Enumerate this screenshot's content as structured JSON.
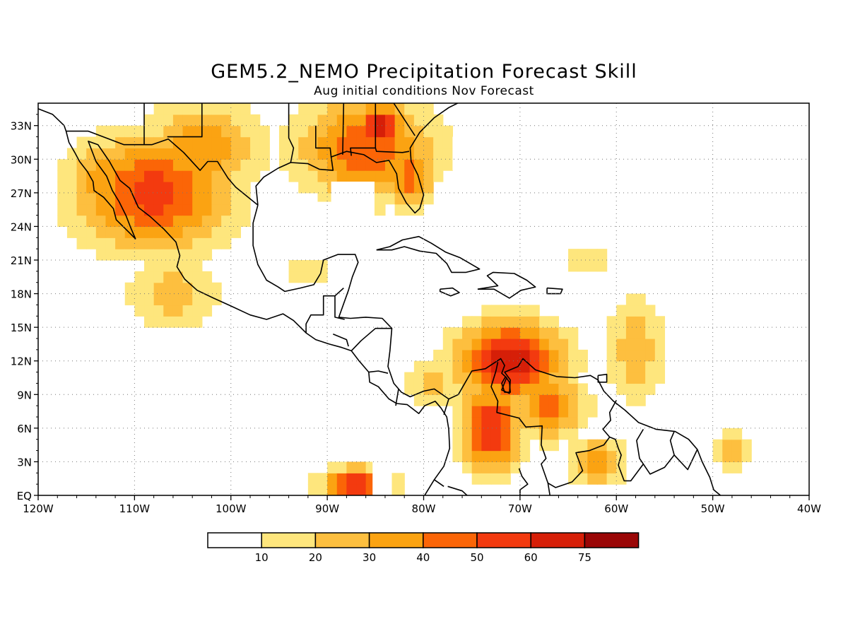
{
  "title": "GEM5.2_NEMO Precipitation Forecast Skill",
  "subtitle": "Aug initial conditions  Nov Forecast",
  "map": {
    "lon_range": [
      -120,
      -40
    ],
    "lat_range": [
      0,
      35
    ],
    "grid": true,
    "lon_labels": [
      "120W",
      "110W",
      "100W",
      "90W",
      "80W",
      "70W",
      "60W",
      "50W",
      "40W"
    ],
    "lat_labels": [
      "EQ",
      "3N",
      "6N",
      "9N",
      "12N",
      "15N",
      "18N",
      "21N",
      "24N",
      "27N",
      "30N",
      "33N"
    ]
  },
  "colorbar": {
    "labels": [
      "10",
      "20",
      "30",
      "40",
      "50",
      "60",
      "75"
    ],
    "colors": [
      "#ffffff",
      "#fee67d",
      "#fdbf3f",
      "#fba312",
      "#fb6507",
      "#f33a0f",
      "#d61f08",
      "#9a0606"
    ]
  },
  "fields": [
    {
      "lon": -108,
      "lat": 27,
      "sx": 8,
      "sy": 5,
      "peak": 55
    },
    {
      "lon": -113,
      "lat": 28,
      "sx": 3.5,
      "sy": 4,
      "peak": 40
    },
    {
      "lon": -103,
      "lat": 31,
      "sx": 6,
      "sy": 4,
      "peak": 40
    },
    {
      "lon": -86,
      "lat": 31,
      "sx": 7,
      "sy": 4.5,
      "peak": 50
    },
    {
      "lon": -84.5,
      "lat": 33,
      "sx": 2.5,
      "sy": 2,
      "peak": 68
    },
    {
      "lon": -81.5,
      "lat": 28.5,
      "sx": 2.5,
      "sy": 3,
      "peak": 45
    },
    {
      "lon": -71,
      "lat": 12,
      "sx": 5.5,
      "sy": 3.5,
      "peak": 68
    },
    {
      "lon": -73,
      "lat": 6,
      "sx": 3,
      "sy": 4,
      "peak": 60
    },
    {
      "lon": -67,
      "lat": 8,
      "sx": 4,
      "sy": 3,
      "peak": 42
    },
    {
      "lon": -62,
      "lat": 3,
      "sx": 3,
      "sy": 2,
      "peak": 40
    },
    {
      "lon": -58,
      "lat": 13,
      "sx": 3,
      "sy": 5,
      "peak": 28
    },
    {
      "lon": -63,
      "lat": 21,
      "sx": 3,
      "sy": 2,
      "peak": 16
    },
    {
      "lon": -87,
      "lat": 1,
      "sx": 3.5,
      "sy": 1.5,
      "peak": 60
    },
    {
      "lon": -48,
      "lat": 4,
      "sx": 2.5,
      "sy": 2,
      "peak": 25
    },
    {
      "lon": -106,
      "lat": 18,
      "sx": 5,
      "sy": 3,
      "peak": 26
    },
    {
      "lon": -79,
      "lat": 10,
      "sx": 3,
      "sy": 2.5,
      "peak": 25
    },
    {
      "lon": -92,
      "lat": 20,
      "sx": 3,
      "sy": 2,
      "peak": 16
    }
  ]
}
